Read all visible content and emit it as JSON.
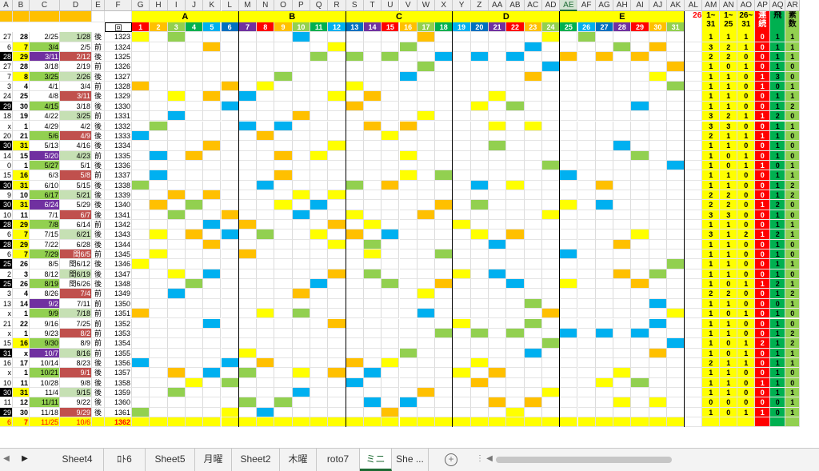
{
  "columns": {
    "letters": [
      "A",
      "B",
      "C",
      "D",
      "E",
      "F",
      "G",
      "H",
      "I",
      "J",
      "K",
      "L",
      "M",
      "N",
      "O",
      "P",
      "Q",
      "R",
      "S",
      "T",
      "U",
      "V",
      "W",
      "X",
      "Y",
      "Z",
      "AA",
      "AB",
      "AC",
      "AD",
      "AE",
      "AF",
      "AG",
      "AH",
      "AI",
      "AJ",
      "AK",
      "AL",
      "AM",
      "AN",
      "AO",
      "AP",
      "AQ",
      "AR"
    ],
    "selected": "AE"
  },
  "groups": [
    {
      "label": "A"
    },
    {
      "label": "B"
    },
    {
      "label": "C"
    },
    {
      "label": "D"
    },
    {
      "label": "E"
    }
  ],
  "header_row": {
    "f_label": "回",
    "nums": [
      "1",
      "2",
      "3",
      "4",
      "5",
      "6",
      "7",
      "8",
      "9",
      "10",
      "11",
      "12",
      "13",
      "14",
      "15",
      "16",
      "17",
      "18",
      "19",
      "20",
      "21",
      "22",
      "23",
      "24",
      "25",
      "26",
      "27",
      "28",
      "29",
      "30",
      "31"
    ],
    "al_top": "26",
    "right_headers": [
      "1~",
      "1~",
      "26~",
      "連続",
      "飛",
      "素数"
    ],
    "right_sub": [
      "31",
      "25",
      "31"
    ]
  },
  "rows": [
    {
      "a": "27",
      "b": "28",
      "c": "2/25",
      "d": "1/28",
      "e": "後",
      "f": "1323"
    },
    {
      "a": "6",
      "b": "7",
      "c": "3/4",
      "d": "2/5",
      "e": "前",
      "f": "1324"
    },
    {
      "a": "28",
      "b": "29",
      "c": "3/11",
      "d": "2/12",
      "e": "後",
      "f": "1325"
    },
    {
      "a": "27",
      "b": "28",
      "c": "3/18",
      "d": "2/19",
      "e": "前",
      "f": "1326"
    },
    {
      "a": "7",
      "b": "8",
      "c": "3/25",
      "d": "2/26",
      "e": "後",
      "f": "1327"
    },
    {
      "a": "3",
      "b": "4",
      "c": "4/1",
      "d": "3/4",
      "e": "前",
      "f": "1328"
    },
    {
      "a": "24",
      "b": "25",
      "c": "4/8",
      "d": "3/11",
      "e": "後",
      "f": "1329"
    },
    {
      "a": "29",
      "b": "30",
      "c": "4/15",
      "d": "3/18",
      "e": "後",
      "f": "1330"
    },
    {
      "a": "18",
      "b": "19",
      "c": "4/22",
      "d": "3/25",
      "e": "前",
      "f": "1331"
    },
    {
      "a": "x",
      "b": "1",
      "c": "4/29",
      "d": "4/2",
      "e": "後",
      "f": "1332"
    },
    {
      "a": "20",
      "b": "21",
      "c": "5/6",
      "d": "4/9",
      "e": "後",
      "f": "1333"
    },
    {
      "a": "30",
      "b": "31",
      "c": "5/13",
      "d": "4/16",
      "e": "後",
      "f": "1334"
    },
    {
      "a": "14",
      "b": "15",
      "c": "5/20",
      "d": "4/23",
      "e": "前",
      "f": "1335"
    },
    {
      "a": "0",
      "b": "1",
      "c": "5/27",
      "d": "5/1",
      "e": "後",
      "f": "1336"
    },
    {
      "a": "15",
      "b": "16",
      "c": "6/3",
      "d": "5/8",
      "e": "前",
      "f": "1337"
    },
    {
      "a": "30",
      "b": "31",
      "c": "6/10",
      "d": "5/15",
      "e": "後",
      "f": "1338"
    },
    {
      "a": "9",
      "b": "10",
      "c": "6/17",
      "d": "5/21",
      "e": "後",
      "f": "1339"
    },
    {
      "a": "30",
      "b": "31",
      "c": "6/24",
      "d": "5/29",
      "e": "後",
      "f": "1340"
    },
    {
      "a": "10",
      "b": "11",
      "c": "7/1",
      "d": "6/7",
      "e": "後",
      "f": "1341"
    },
    {
      "a": "28",
      "b": "29",
      "c": "7/8",
      "d": "6/14",
      "e": "前",
      "f": "1342"
    },
    {
      "a": "6",
      "b": "7",
      "c": "7/15",
      "d": "6/21",
      "e": "後",
      "f": "1343"
    },
    {
      "a": "28",
      "b": "29",
      "c": "7/22",
      "d": "6/28",
      "e": "後",
      "f": "1344"
    },
    {
      "a": "6",
      "b": "7",
      "c": "7/29",
      "d": "閏6/5",
      "e": "前",
      "f": "1345"
    },
    {
      "a": "25",
      "b": "26",
      "c": "8/5",
      "d": "閏6/12",
      "e": "後",
      "f": "1346"
    },
    {
      "a": "2",
      "b": "3",
      "c": "8/12",
      "d": "閏6/19",
      "e": "後",
      "f": "1347"
    },
    {
      "a": "25",
      "b": "26",
      "c": "8/19",
      "d": "閏6/26",
      "e": "後",
      "f": "1348"
    },
    {
      "a": "3",
      "b": "4",
      "c": "8/26",
      "d": "7/4",
      "e": "前",
      "f": "1349"
    },
    {
      "a": "13",
      "b": "14",
      "c": "9/2",
      "d": "7/11",
      "e": "前",
      "f": "1350"
    },
    {
      "a": "x",
      "b": "1",
      "c": "9/9",
      "d": "7/18",
      "e": "前",
      "f": "1351"
    },
    {
      "a": "21",
      "b": "22",
      "c": "9/16",
      "d": "7/25",
      "e": "前",
      "f": "1352"
    },
    {
      "a": "x",
      "b": "1",
      "c": "9/23",
      "d": "8/2",
      "e": "前",
      "f": "1353"
    },
    {
      "a": "15",
      "b": "16",
      "c": "9/30",
      "d": "8/9",
      "e": "前",
      "f": "1354"
    },
    {
      "a": "31",
      "b": "x",
      "c": "10/7",
      "d": "8/16",
      "e": "前",
      "f": "1355"
    },
    {
      "a": "16",
      "b": "17",
      "c": "10/14",
      "d": "8/23",
      "e": "後",
      "f": "1356"
    },
    {
      "a": "x",
      "b": "1",
      "c": "10/21",
      "d": "9/1",
      "e": "後",
      "f": "1357"
    },
    {
      "a": "10",
      "b": "11",
      "c": "10/28",
      "d": "9/8",
      "e": "後",
      "f": "1358"
    },
    {
      "a": "30",
      "b": "31",
      "c": "11/4",
      "d": "9/15",
      "e": "後",
      "f": "1359"
    },
    {
      "a": "11",
      "b": "12",
      "c": "11/11",
      "d": "9/22",
      "e": "後",
      "f": "1360"
    },
    {
      "a": "29",
      "b": "30",
      "c": "11/18",
      "d": "9/29",
      "e": "後",
      "f": "1361"
    },
    {
      "a": "6",
      "b": "7",
      "c": "11/25",
      "d": "10/6",
      "e": "",
      "f": "1362"
    }
  ],
  "right_values": [
    [
      "1",
      "1",
      "1",
      "0",
      "1",
      "1"
    ],
    [
      "3",
      "2",
      "1",
      "0",
      "1",
      "1"
    ],
    [
      "2",
      "2",
      "0",
      "0",
      "1",
      "1"
    ],
    [
      "1",
      "0",
      "1",
      "0",
      "1",
      "0"
    ],
    [
      "1",
      "1",
      "0",
      "1",
      "3",
      "0"
    ],
    [
      "1",
      "1",
      "0",
      "1",
      "0",
      "1"
    ],
    [
      "1",
      "1",
      "0",
      "0",
      "1",
      "1"
    ],
    [
      "1",
      "1",
      "0",
      "0",
      "1",
      "2"
    ],
    [
      "3",
      "2",
      "1",
      "1",
      "2",
      "0"
    ],
    [
      "3",
      "3",
      "0",
      "0",
      "1",
      "1"
    ],
    [
      "2",
      "1",
      "1",
      "1",
      "1",
      "0"
    ],
    [
      "1",
      "1",
      "0",
      "0",
      "1",
      "0"
    ],
    [
      "1",
      "0",
      "1",
      "0",
      "1",
      "0"
    ],
    [
      "1",
      "0",
      "1",
      "1",
      "0",
      "1"
    ],
    [
      "1",
      "1",
      "0",
      "0",
      "1",
      "1"
    ],
    [
      "1",
      "1",
      "0",
      "0",
      "1",
      "2"
    ],
    [
      "2",
      "2",
      "0",
      "0",
      "1",
      "2"
    ],
    [
      "2",
      "2",
      "0",
      "1",
      "2",
      "0"
    ],
    [
      "3",
      "3",
      "0",
      "0",
      "1",
      "0"
    ],
    [
      "1",
      "1",
      "0",
      "0",
      "1",
      "1"
    ],
    [
      "3",
      "1",
      "2",
      "1",
      "2",
      "1"
    ],
    [
      "1",
      "1",
      "0",
      "0",
      "1",
      "0"
    ],
    [
      "1",
      "1",
      "0",
      "0",
      "1",
      "0"
    ],
    [
      "1",
      "1",
      "0",
      "0",
      "1",
      "1"
    ],
    [
      "1",
      "1",
      "0",
      "0",
      "1",
      "0"
    ],
    [
      "1",
      "0",
      "1",
      "1",
      "2",
      "1"
    ],
    [
      "2",
      "2",
      "0",
      "0",
      "1",
      "2"
    ],
    [
      "1",
      "1",
      "0",
      "0",
      "0",
      "1"
    ],
    [
      "1",
      "0",
      "1",
      "0",
      "1",
      "0"
    ],
    [
      "1",
      "1",
      "0",
      "0",
      "1",
      "0"
    ],
    [
      "1",
      "1",
      "0",
      "0",
      "1",
      "2"
    ],
    [
      "1",
      "0",
      "1",
      "2",
      "1",
      "2"
    ],
    [
      "1",
      "0",
      "1",
      "0",
      "1",
      "1"
    ],
    [
      "2",
      "1",
      "1",
      "0",
      "1",
      "1"
    ],
    [
      "1",
      "1",
      "0",
      "0",
      "1",
      "0"
    ],
    [
      "1",
      "1",
      "0",
      "1",
      "1",
      "0"
    ],
    [
      "1",
      "1",
      "0",
      "0",
      "1",
      "1"
    ],
    [
      "0",
      "0",
      "0",
      "0",
      "0",
      "1"
    ],
    [
      "1",
      "0",
      "1",
      "1",
      "0",
      "1"
    ]
  ],
  "marks": [
    [
      2,
      "27"
    ],
    [
      3,
      "31"
    ],
    [
      4,
      "16"
    ],
    [
      3,
      "28"
    ],
    [
      0,
      "24"
    ]
  ],
  "tabs": {
    "nav_prev": "◀",
    "nav_next": "▶",
    "items": [
      "Sheet4",
      "ﾛﾄ6",
      "Sheet5",
      "月曜",
      "Sheet2",
      "木曜",
      "roto7",
      "ミニ",
      "She ..."
    ],
    "active": "ミニ",
    "add": "+"
  },
  "colors": {
    "yellow": "#ffff00",
    "orange": "#ffc000",
    "blue": "#00b0f0",
    "green": "#92d050",
    "red": "#ff0000",
    "gray": "#808080",
    "lightgray": "#d9d9d9",
    "purple": "#7030a0",
    "teal": "#00b050"
  }
}
